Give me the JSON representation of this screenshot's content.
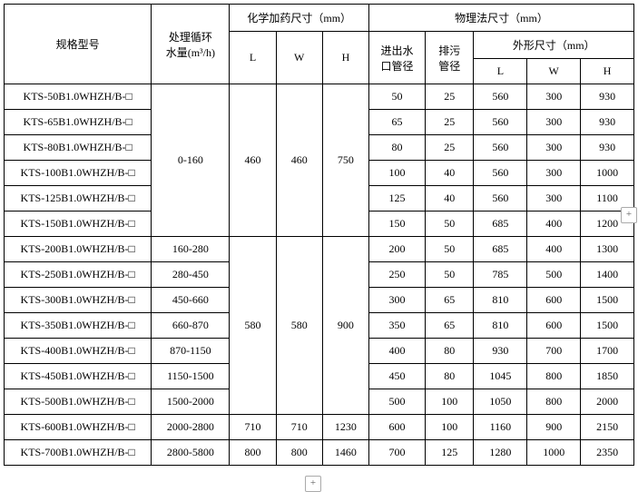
{
  "headers": {
    "model": "规格型号",
    "flow": "处理循环\n水量(m³/h)",
    "chem_group": "化学加药尺寸（mm）",
    "phys_group": "物理法尺寸（mm）",
    "L": "L",
    "W": "W",
    "H": "H",
    "inlet": "进出水\n口管径",
    "drain": "排污\n管径",
    "outer_group": "外形尺寸（mm）"
  },
  "chem_groups": [
    {
      "flow": "0-160",
      "L": "460",
      "W": "460",
      "H": "750",
      "span": 6
    },
    {
      "flow": null,
      "L": "580",
      "W": "580",
      "H": "900",
      "span": 7
    },
    {
      "flow": "2000-2800",
      "L": "710",
      "W": "710",
      "H": "1230",
      "span": 1
    },
    {
      "flow": "2800-5800",
      "L": "800",
      "W": "800",
      "H": "1460",
      "span": 1
    }
  ],
  "flows_group2": [
    "160-280",
    "280-450",
    "450-660",
    "660-870",
    "870-1150",
    "1150-1500",
    "1500-2000"
  ],
  "rows": [
    {
      "model": "KTS-50B1.0WHZH/B-□",
      "inlet": "50",
      "drain": "25",
      "oL": "560",
      "oW": "300",
      "oH": "930"
    },
    {
      "model": "KTS-65B1.0WHZH/B-□",
      "inlet": "65",
      "drain": "25",
      "oL": "560",
      "oW": "300",
      "oH": "930"
    },
    {
      "model": "KTS-80B1.0WHZH/B-□",
      "inlet": "80",
      "drain": "25",
      "oL": "560",
      "oW": "300",
      "oH": "930"
    },
    {
      "model": "KTS-100B1.0WHZH/B-□",
      "inlet": "100",
      "drain": "40",
      "oL": "560",
      "oW": "300",
      "oH": "1000"
    },
    {
      "model": "KTS-125B1.0WHZH/B-□",
      "inlet": "125",
      "drain": "40",
      "oL": "560",
      "oW": "300",
      "oH": "1100"
    },
    {
      "model": "KTS-150B1.0WHZH/B-□",
      "inlet": "150",
      "drain": "50",
      "oL": "685",
      "oW": "400",
      "oH": "1200"
    },
    {
      "model": "KTS-200B1.0WHZH/B-□",
      "inlet": "200",
      "drain": "50",
      "oL": "685",
      "oW": "400",
      "oH": "1300"
    },
    {
      "model": "KTS-250B1.0WHZH/B-□",
      "inlet": "250",
      "drain": "50",
      "oL": "785",
      "oW": "500",
      "oH": "1400"
    },
    {
      "model": "KTS-300B1.0WHZH/B-□",
      "inlet": "300",
      "drain": "65",
      "oL": "810",
      "oW": "600",
      "oH": "1500"
    },
    {
      "model": "KTS-350B1.0WHZH/B-□",
      "inlet": "350",
      "drain": "65",
      "oL": "810",
      "oW": "600",
      "oH": "1500"
    },
    {
      "model": "KTS-400B1.0WHZH/B-□",
      "inlet": "400",
      "drain": "80",
      "oL": "930",
      "oW": "700",
      "oH": "1700"
    },
    {
      "model": "KTS-450B1.0WHZH/B-□",
      "inlet": "450",
      "drain": "80",
      "oL": "1045",
      "oW": "800",
      "oH": "1850"
    },
    {
      "model": "KTS-500B1.0WHZH/B-□",
      "inlet": "500",
      "drain": "100",
      "oL": "1050",
      "oW": "800",
      "oH": "2000"
    },
    {
      "model": "KTS-600B1.0WHZH/B-□",
      "inlet": "600",
      "drain": "100",
      "oL": "1160",
      "oW": "900",
      "oH": "2150"
    },
    {
      "model": "KTS-700B1.0WHZH/B-□",
      "inlet": "700",
      "drain": "125",
      "oL": "1280",
      "oW": "1000",
      "oH": "2350"
    }
  ],
  "plus_label": "+"
}
